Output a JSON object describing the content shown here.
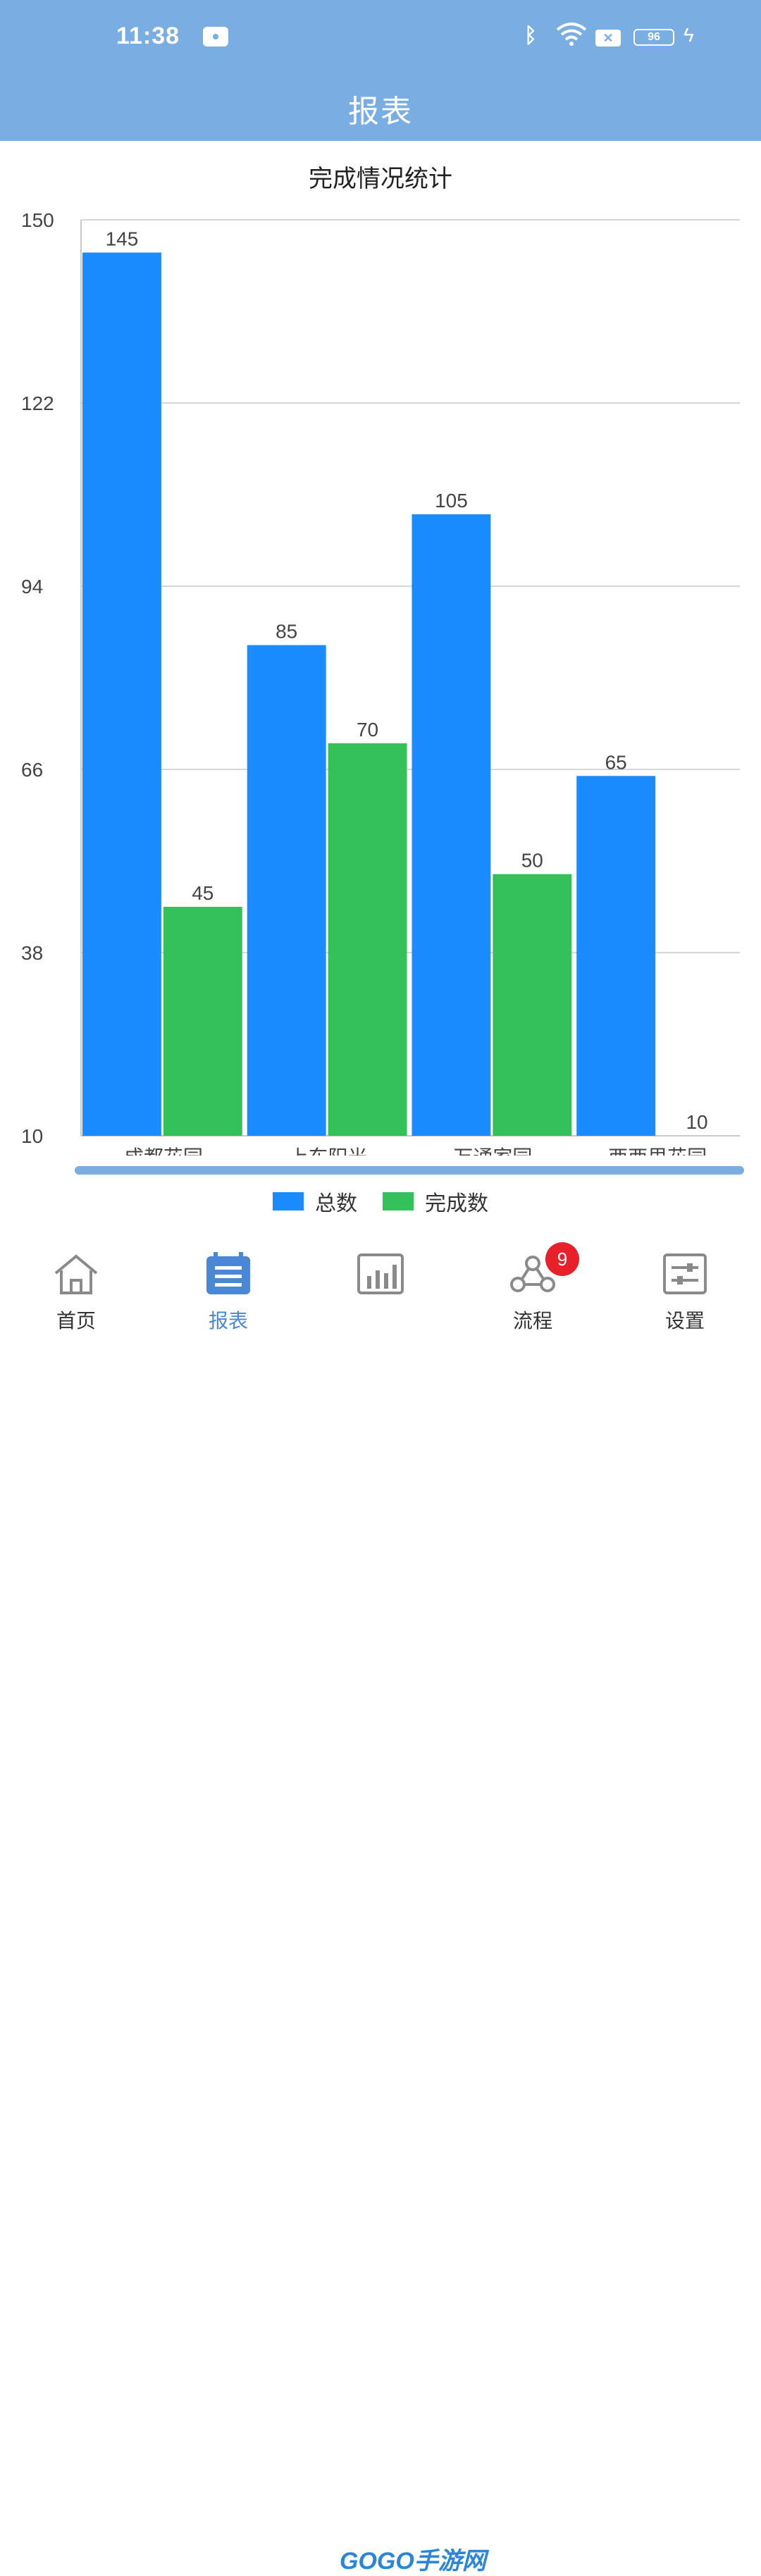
{
  "status_bar": {
    "time": "11:38",
    "battery": "96"
  },
  "header": {
    "title": "报表"
  },
  "chart_data": {
    "type": "bar",
    "title": "完成情况统计",
    "categories": [
      "成都花园",
      "上东阳光",
      "万通家园",
      "西西里花园"
    ],
    "series": [
      {
        "name": "总数",
        "values": [
          145,
          85,
          105,
          65
        ],
        "color": "#1a8cff"
      },
      {
        "name": "完成数",
        "values": [
          45,
          70,
          50,
          10
        ],
        "color": "#33c25a"
      }
    ],
    "y_ticks": [
      150,
      122,
      94,
      66,
      38,
      10
    ],
    "ylim": [
      10,
      150
    ],
    "grid": true,
    "legend_position": "bottom"
  },
  "nav": {
    "items": [
      {
        "label": "首页",
        "icon": "home-icon"
      },
      {
        "label": "报表",
        "icon": "report-icon",
        "active": true
      },
      {
        "label": "",
        "icon": "chart-icon"
      },
      {
        "label": "流程",
        "icon": "flow-icon",
        "badge": "9"
      },
      {
        "label": "设置",
        "icon": "settings-icon"
      }
    ]
  },
  "watermark": "GOGO手游网"
}
